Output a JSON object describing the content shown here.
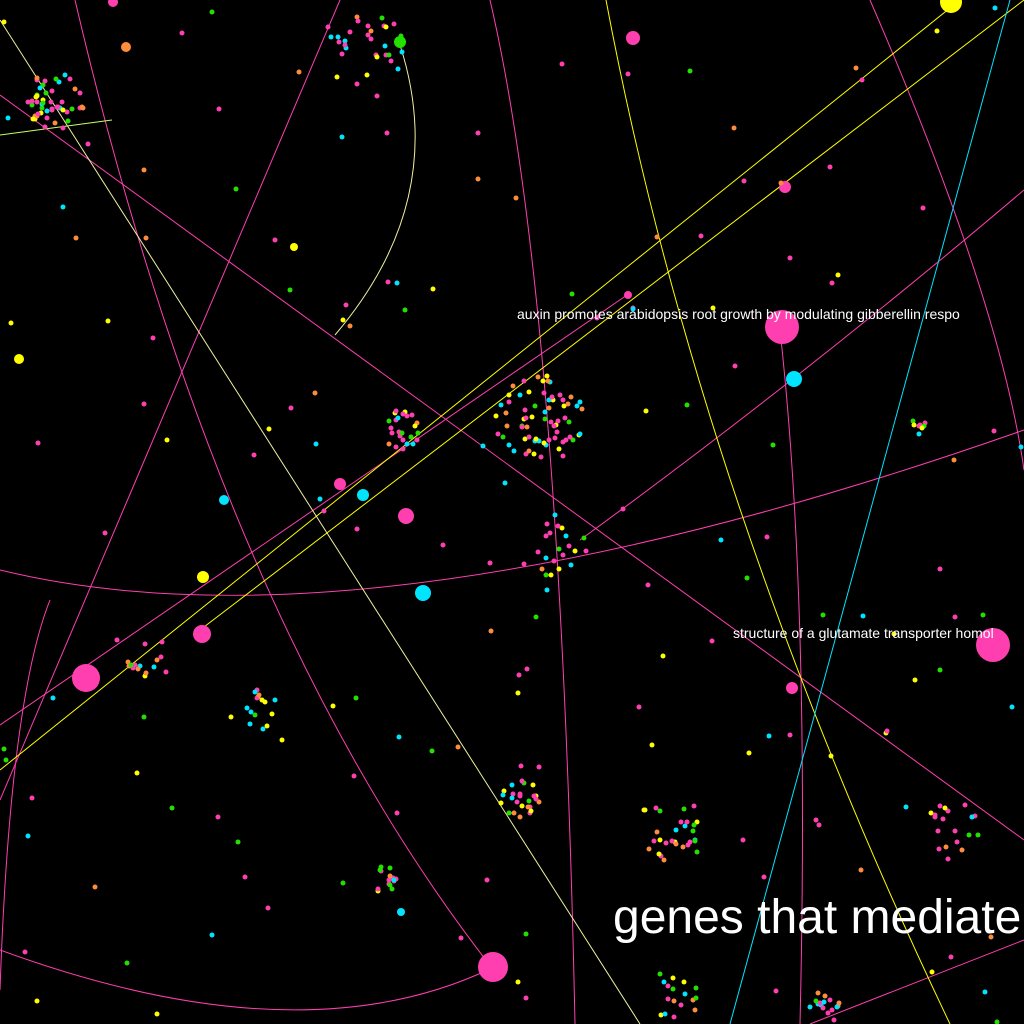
{
  "labels": {
    "paper_1": "auxin promotes arabidopsis root growth by modulating gibberellin respo",
    "paper_2": "structure of a glutamate transporter homol",
    "cluster_1": "genes that mediate"
  },
  "colors": {
    "background": "#000000",
    "magenta": "#ff3fb0",
    "yellow": "#ffff00",
    "cyan": "#00e5ff",
    "green": "#22e000",
    "orange": "#ff8c3a",
    "light_yellow": "#f0f0a0",
    "violet": "#7a5cff"
  }
}
